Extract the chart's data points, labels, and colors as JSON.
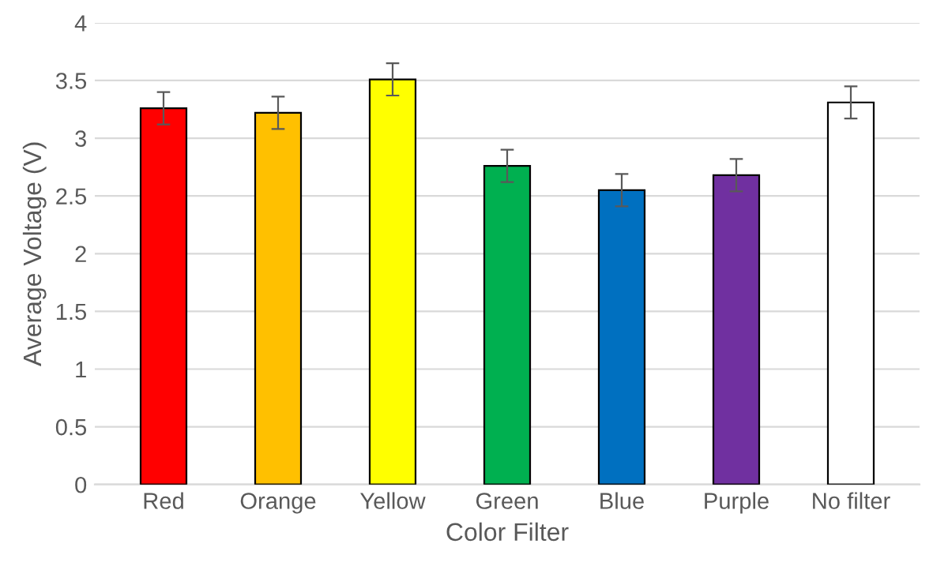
{
  "chart_data": {
    "type": "bar",
    "xlabel": "Color Filter",
    "ylabel": "Average Voltage (V)",
    "categories": [
      "Red",
      "Orange",
      "Yellow",
      "Green",
      "Blue",
      "Purple",
      "No filter"
    ],
    "values": [
      3.26,
      3.22,
      3.51,
      2.76,
      2.55,
      2.68,
      3.31
    ],
    "errors": [
      0.14,
      0.14,
      0.14,
      0.14,
      0.14,
      0.14,
      0.14
    ],
    "colors": [
      "#ff0000",
      "#ffc000",
      "#ffff00",
      "#00b050",
      "#0070c0",
      "#7030a0",
      "#ffffff"
    ],
    "ylim": [
      0,
      4
    ],
    "yticks": [
      0,
      0.5,
      1,
      1.5,
      2,
      2.5,
      3,
      3.5,
      4
    ],
    "grid": "y",
    "legend": false
  }
}
